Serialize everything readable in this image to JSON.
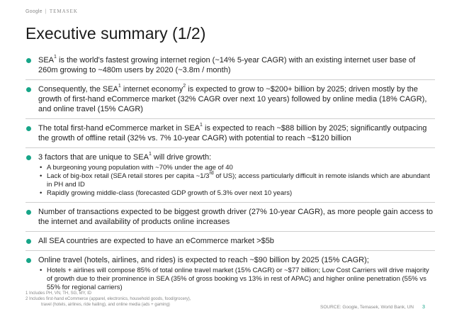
{
  "header": {
    "brand": "Google",
    "separator": "|",
    "partner": "TEMASEK"
  },
  "title": "Executive summary (1/2)",
  "bullets": [
    {
      "pre": "SEA",
      "sup": "1",
      "post": " is the world's fastest growing internet region (~14% 5-year CAGR) with an existing internet user base of 260m growing to ~480m users by 2020 (~3.8m / month)"
    },
    {
      "pre": "Consequently, the SEA",
      "sup": "1",
      "mid": " internet economy",
      "sup2": "2",
      "post": " is expected to grow to ~$200+ billion by 2025; driven mostly by the growth of first-hand eCommerce market (32% CAGR over next 10 years) followed by online media (18% CAGR), and online travel (15% CAGR)"
    },
    {
      "pre": "The total first-hand eCommerce market in SEA",
      "sup": "1",
      "post": " is expected to reach ~$88 billion by 2025; significantly outpacing the growth of offline retail (32% vs. 7% 10-year CAGR) with potential to reach ~$120 billion"
    },
    {
      "pre": "3 factors that are unique to SEA",
      "sup": "1",
      "post": " will drive growth:",
      "subs": [
        {
          "text": "A burgeoning young population with ~70% under the age of 40"
        },
        {
          "pre": "Lack of big-box retail (SEA retail stores per capita ~1/3",
          "sup": "rd",
          "post": " of US); access particularly difficult in remote islands which are abundant in PH and ID"
        },
        {
          "text": "Rapidly growing middle-class (forecasted GDP growth of 5.3% over next 10 years)"
        }
      ]
    },
    {
      "text": "Number of transactions expected to be biggest growth driver (27% 10-year CAGR), as more people gain access to the internet and availability of products online increases"
    },
    {
      "text": "All SEA countries are expected to have an eCommerce market >$5b"
    },
    {
      "text": "Online travel (hotels, airlines, and rides) is expected to reach ~$90 billion by 2025 (15% CAGR);",
      "subs": [
        {
          "text": "Hotels + airlines will compose 85% of total online travel market (15% CAGR) or ~$77 billion; Low Cost Carriers will drive majority of growth due to their prominence in SEA (35% of gross booking vs 13% in rest of APAC) and higher online penetration (55% vs 55% for regional carriers)"
        }
      ]
    }
  ],
  "footnotes": {
    "line1": "1 Includes PH, VN, TH, SG, MY, ID",
    "line2": "2 Includes first-hand eCommerce (apparel, electronics, household goods, food/grocery),",
    "line3": "travel (hotels, airlines, ride hailing), and online media (ads + gaming)"
  },
  "source": "SOURCE: Google, Temasek, World Bank, UN",
  "page_number": "3",
  "colors": {
    "accent": "#17a588",
    "divider": "#cfcfcf"
  }
}
